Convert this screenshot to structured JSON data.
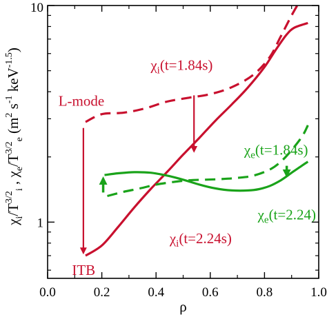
{
  "chart_data": {
    "type": "line",
    "xlabel": "ρ",
    "ylabel": {
      "parts": [
        {
          "t": "χ",
          "sub": false,
          "sup": false
        },
        {
          "t": "i",
          "sub": true,
          "sup": false
        },
        {
          "t": "/T",
          "sub": false,
          "sup": false
        },
        {
          "t": "3/2",
          "sub": false,
          "sup": true
        },
        {
          "t": "i",
          "sub": true,
          "sup": false
        },
        {
          "t": " , χ",
          "sub": false,
          "sup": false
        },
        {
          "t": "e",
          "sub": true,
          "sup": false
        },
        {
          "t": "/T",
          "sub": false,
          "sup": false
        },
        {
          "t": "3/2",
          "sub": false,
          "sup": true
        },
        {
          "t": "e",
          "sub": true,
          "sup": false
        },
        {
          "t": "  (m",
          "sub": false,
          "sup": false
        },
        {
          "t": "2",
          "sub": false,
          "sup": true
        },
        {
          "t": " s",
          "sub": false,
          "sup": false
        },
        {
          "t": "-1",
          "sub": false,
          "sup": true
        },
        {
          "t": " keV",
          "sub": false,
          "sup": false
        },
        {
          "t": "-1.5",
          "sub": false,
          "sup": true
        },
        {
          "t": ")",
          "sub": false,
          "sup": false
        }
      ]
    },
    "xlim": [
      0,
      1.0
    ],
    "ylim": [
      0.55,
      10
    ],
    "yscale": "log",
    "grid": false,
    "x_ticks": [
      {
        "value": 0.0,
        "label": "0.0"
      },
      {
        "value": 0.2,
        "label": "0.2"
      },
      {
        "value": 0.4,
        "label": "0.4"
      },
      {
        "value": 0.6,
        "label": "0.6"
      },
      {
        "value": 0.8,
        "label": "0.8"
      },
      {
        "value": 1.0,
        "label": "1.0"
      }
    ],
    "y_ticks": [
      {
        "value": 1,
        "label": "1"
      },
      {
        "value": 10,
        "label": "10"
      }
    ],
    "colors": {
      "red": "#c8102e",
      "green": "#1aa31a"
    },
    "series": [
      {
        "color": "#c8102e",
        "dash": true,
        "x": [
          0.14,
          0.2,
          0.28,
          0.36,
          0.44,
          0.52,
          0.6,
          0.68,
          0.76,
          0.82,
          0.86,
          0.9,
          0.94
        ],
        "y": [
          2.9,
          3.15,
          3.2,
          3.35,
          3.6,
          3.75,
          3.9,
          4.2,
          4.8,
          5.8,
          7.2,
          9.0,
          11.0
        ]
      },
      {
        "color": "#c8102e",
        "dash": false,
        "x": [
          0.14,
          0.2,
          0.26,
          0.32,
          0.38,
          0.44,
          0.5,
          0.56,
          0.62,
          0.68,
          0.74,
          0.8,
          0.84,
          0.88,
          0.91,
          0.96
        ],
        "y": [
          0.7,
          0.78,
          0.95,
          1.17,
          1.42,
          1.7,
          2.05,
          2.45,
          2.95,
          3.5,
          4.2,
          5.2,
          6.2,
          7.3,
          7.9,
          8.3
        ]
      },
      {
        "color": "#1aa31a",
        "dash": true,
        "x": [
          0.22,
          0.28,
          0.34,
          0.4,
          0.46,
          0.52,
          0.58,
          0.64,
          0.7,
          0.76,
          0.82,
          0.86,
          0.9,
          0.94,
          0.96
        ],
        "y": [
          1.32,
          1.38,
          1.43,
          1.49,
          1.53,
          1.56,
          1.57,
          1.58,
          1.6,
          1.64,
          1.75,
          1.9,
          2.15,
          2.5,
          2.8
        ]
      },
      {
        "color": "#1aa31a",
        "dash": false,
        "x": [
          0.21,
          0.26,
          0.32,
          0.38,
          0.44,
          0.5,
          0.56,
          0.62,
          0.68,
          0.74,
          0.78,
          0.82,
          0.86,
          0.9,
          0.94,
          0.96
        ],
        "y": [
          1.65,
          1.68,
          1.7,
          1.69,
          1.64,
          1.57,
          1.49,
          1.43,
          1.4,
          1.4,
          1.42,
          1.47,
          1.56,
          1.69,
          1.83,
          1.9
        ]
      }
    ],
    "annotations": [
      {
        "name": "chi-i-lmode",
        "color": "#c8102e",
        "x": 0.38,
        "y": 5.05,
        "parts": [
          {
            "t": "χ",
            "sub": false
          },
          {
            "t": "i",
            "sub": true
          },
          {
            "t": "(t=1.84s)",
            "sub": false
          }
        ]
      },
      {
        "name": "l-mode",
        "color": "#c8102e",
        "x": 0.04,
        "y": 3.45,
        "parts": [
          {
            "t": "L-mode",
            "sub": false
          }
        ]
      },
      {
        "name": "chi-e-lmode",
        "color": "#1aa31a",
        "x": 0.725,
        "y": 2.05,
        "parts": [
          {
            "t": "χ",
            "sub": false
          },
          {
            "t": "e",
            "sub": true
          },
          {
            "t": "(t=1.84s)",
            "sub": false
          }
        ]
      },
      {
        "name": "chi-e-itb",
        "color": "#1aa31a",
        "x": 0.775,
        "y": 1.03,
        "parts": [
          {
            "t": "χ",
            "sub": false
          },
          {
            "t": "e",
            "sub": true
          },
          {
            "t": "(t=2.24)",
            "sub": false
          }
        ]
      },
      {
        "name": "chi-i-itb",
        "color": "#c8102e",
        "x": 0.45,
        "y": 0.8,
        "parts": [
          {
            "t": "χ",
            "sub": false
          },
          {
            "t": "i",
            "sub": true
          },
          {
            "t": "(t=2.24s)",
            "sub": false
          }
        ]
      },
      {
        "name": "itb",
        "color": "#c8102e",
        "x": 0.09,
        "y": 0.57,
        "parts": [
          {
            "t": "ITB",
            "sub": false
          }
        ]
      }
    ],
    "arrows": [
      {
        "name": "arrow-l-mode-to-itb",
        "color": "#c8102e",
        "x": 0.132,
        "y_from": 2.72,
        "y_to": 0.72
      },
      {
        "name": "arrow-chi-i-drop",
        "color": "#c8102e",
        "x": 0.54,
        "y_from": 3.85,
        "y_to": 2.12
      },
      {
        "name": "arrow-chi-e-rise",
        "color": "#1aa31a",
        "x": 0.205,
        "y_from": 1.37,
        "y_to": 1.59
      },
      {
        "name": "arrow-chi-e-drop",
        "color": "#1aa31a",
        "x": 0.882,
        "y_from": 1.82,
        "y_to": 1.64
      }
    ]
  }
}
